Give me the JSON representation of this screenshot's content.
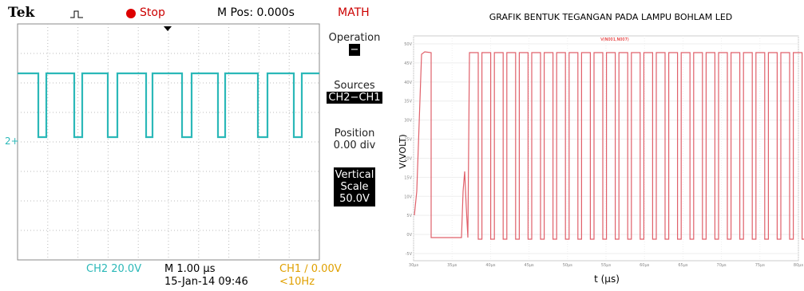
{
  "scope": {
    "brand": "Tek",
    "status": "Stop",
    "mpos": "M Pos: 0.000s",
    "menu_title": "MATH",
    "menu": [
      {
        "label": "Operation",
        "value": "−"
      },
      {
        "label": "Sources",
        "value": "CH2−CH1"
      },
      {
        "label": "Position",
        "value": "0.00 div"
      },
      {
        "label": "Vertical Scale",
        "value": "50.0V"
      }
    ],
    "marker": "2+",
    "ch2": "CH2  20.0V",
    "timebase": "M 1.00 µs",
    "date": "15-Jan-14 09:46",
    "trigger": "CH1 ∕ 0.00V",
    "freq": "<10Hz"
  },
  "graph": {
    "title": "GRAFIK BENTUK TEGANGAN PADA  LAMPU BOHLAM LED",
    "trace": "V(N001,N007)",
    "ylabel": "V(VOLT)",
    "xlabel": "t (µs)",
    "yticks": [
      "50V",
      "45V",
      "40V",
      "35V",
      "30V",
      "25V",
      "20V",
      "15V",
      "10V",
      "5V",
      "0V",
      "-5V"
    ],
    "xticks": [
      "30µs",
      "35µs",
      "40µs",
      "45µs",
      "50µs",
      "55µs",
      "60µs",
      "65µs",
      "70µs",
      "75µs",
      "80µs"
    ]
  }
}
